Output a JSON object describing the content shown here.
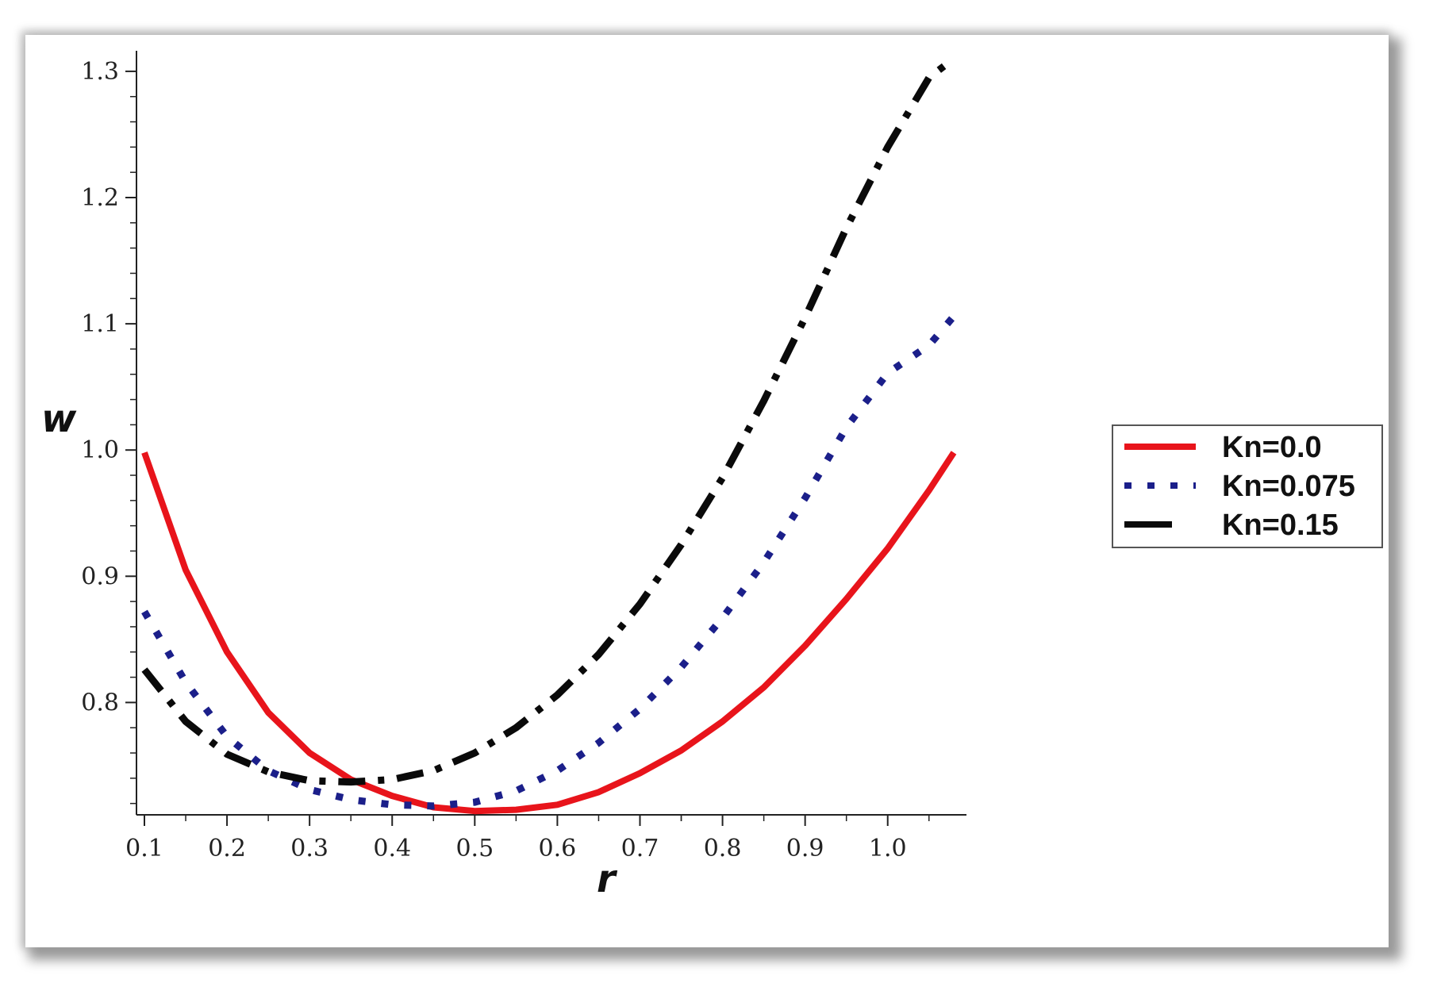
{
  "chart_data": {
    "type": "line",
    "xlabel": "r",
    "ylabel": "w",
    "xlim": [
      0.1,
      1.08
    ],
    "ylim": [
      0.711,
      1.31
    ],
    "xticks": [
      "0.1",
      "0.2",
      "0.3",
      "0.4",
      "0.5",
      "0.6",
      "0.7",
      "0.8",
      "0.9",
      "1.0"
    ],
    "yticks": [
      "0.8",
      "0.9",
      "1.0",
      "1.1",
      "1.2",
      "1.3"
    ],
    "grid": false,
    "legend_position": "right",
    "series": [
      {
        "name": "Kn=0.0",
        "color": "#e8141b",
        "style": "solid",
        "x": [
          0.1,
          0.15,
          0.2,
          0.25,
          0.3,
          0.35,
          0.4,
          0.45,
          0.5,
          0.55,
          0.6,
          0.65,
          0.7,
          0.75,
          0.8,
          0.85,
          0.9,
          0.95,
          1.0,
          1.05,
          1.08
        ],
        "y": [
          0.998,
          0.905,
          0.84,
          0.792,
          0.76,
          0.739,
          0.726,
          0.717,
          0.714,
          0.715,
          0.719,
          0.729,
          0.744,
          0.762,
          0.785,
          0.812,
          0.845,
          0.882,
          0.922,
          0.968,
          0.998
        ]
      },
      {
        "name": "Kn=0.075",
        "color": "#1b1f8a",
        "style": "dotted",
        "x": [
          0.1,
          0.15,
          0.2,
          0.25,
          0.3,
          0.35,
          0.4,
          0.45,
          0.5,
          0.55,
          0.6,
          0.65,
          0.7,
          0.75,
          0.8,
          0.85,
          0.9,
          0.95,
          1.0,
          1.05,
          1.08
        ],
        "y": [
          0.872,
          0.816,
          0.773,
          0.746,
          0.731,
          0.723,
          0.719,
          0.718,
          0.721,
          0.73,
          0.746,
          0.768,
          0.795,
          0.828,
          0.867,
          0.911,
          0.962,
          1.018,
          1.061,
          1.083,
          1.106
        ]
      },
      {
        "name": "Kn=0.15",
        "color": "#0a0a0a",
        "style": "dashdot",
        "x": [
          0.1,
          0.15,
          0.2,
          0.25,
          0.3,
          0.35,
          0.4,
          0.45,
          0.5,
          0.55,
          0.6,
          0.65,
          0.7,
          0.75,
          0.8,
          0.85,
          0.9,
          0.95,
          1.0,
          1.05,
          1.08
        ],
        "y": [
          0.826,
          0.785,
          0.759,
          0.745,
          0.738,
          0.737,
          0.739,
          0.746,
          0.76,
          0.78,
          0.806,
          0.838,
          0.878,
          0.925,
          0.978,
          1.039,
          1.105,
          1.176,
          1.24,
          1.295,
          1.31
        ]
      }
    ]
  }
}
